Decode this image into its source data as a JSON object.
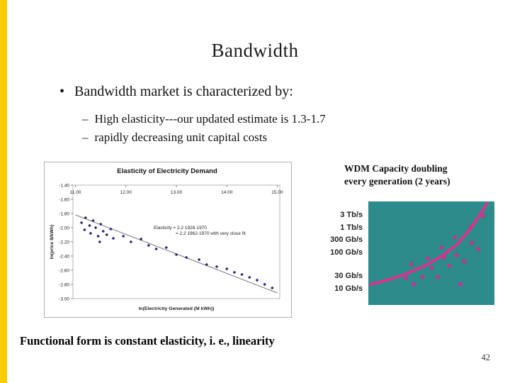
{
  "slide": {
    "title": "Bandwidth",
    "bullet_char": "•",
    "bullet": "Bandwidth market is characterized by:",
    "dash_char": "–",
    "sub_bullets": [
      "High elasticity---our updated estimate is 1.3-1.7",
      "rapidly decreasing unit capital costs"
    ],
    "footer": "Functional form is constant elasticity, i. e., linearity",
    "page_number": "42"
  },
  "wdm": {
    "heading": "WDM Capacity doubling every generation (2 years)",
    "rate_labels": [
      "3 Tb/s",
      "1 Tb/s",
      "300 Gb/s",
      "100 Gb/s",
      "30 Gb/s",
      "10 Gb/s"
    ]
  },
  "colors": {
    "accent_bar": "#ffcc00",
    "teal_bg": "#2e8b8b",
    "magenta": "#cc2f8f",
    "curve_pink": "#d6348f",
    "navy_point": "#2a2a7a",
    "trend_gray": "#777777"
  },
  "chart_data": [
    {
      "type": "scatter",
      "title": "Elasticity of Electricity Demand",
      "xlabel": "ln(Electricity Generated (M kWh))",
      "ylabel": "ln(price $/kWh)",
      "x_ticks": [
        11,
        12,
        13,
        14,
        15
      ],
      "x_tick_labels": [
        "11.00",
        "12.00",
        "13.00",
        "14.00",
        "15.00"
      ],
      "y_ticks": [
        -1.4,
        -1.6,
        -1.8,
        -2.0,
        -2.2,
        -2.4,
        -2.6,
        -2.8,
        -3.0
      ],
      "y_tick_labels": [
        "-1.40",
        "-1.60",
        "-1.80",
        "-2.00",
        "-2.20",
        "-2.40",
        "-2.60",
        "-2.80",
        "-3.00"
      ],
      "xlim": [
        10.95,
        15.05
      ],
      "ylim": [
        -3.0,
        -1.4
      ],
      "annotation_lines": [
        "Elasticity = 2.2 1928-1970",
        "= 2.2 1962-1970 with very close fit"
      ],
      "annotation_pos": [
        12.55,
        -2.02
      ],
      "trend_line": {
        "x": [
          11.0,
          15.0
        ],
        "y": [
          -1.82,
          -2.92
        ]
      },
      "points": [
        [
          11.12,
          -1.93
        ],
        [
          11.2,
          -1.86
        ],
        [
          11.28,
          -1.97
        ],
        [
          11.18,
          -2.03
        ],
        [
          11.35,
          -1.9
        ],
        [
          11.4,
          -2.0
        ],
        [
          11.3,
          -2.08
        ],
        [
          11.45,
          -2.12
        ],
        [
          11.5,
          -1.95
        ],
        [
          11.55,
          -2.05
        ],
        [
          11.62,
          -2.1
        ],
        [
          11.48,
          -2.2
        ],
        [
          11.7,
          -2.02
        ],
        [
          11.75,
          -2.15
        ],
        [
          11.95,
          -2.12
        ],
        [
          12.1,
          -2.2
        ],
        [
          12.3,
          -2.16
        ],
        [
          12.45,
          -2.25
        ],
        [
          12.6,
          -2.3
        ],
        [
          12.8,
          -2.28
        ],
        [
          13.0,
          -2.38
        ],
        [
          13.2,
          -2.42
        ],
        [
          13.45,
          -2.45
        ],
        [
          13.6,
          -2.52
        ],
        [
          13.8,
          -2.55
        ],
        [
          14.0,
          -2.58
        ],
        [
          14.15,
          -2.63
        ],
        [
          14.3,
          -2.66
        ],
        [
          14.45,
          -2.7
        ],
        [
          14.6,
          -2.74
        ],
        [
          14.75,
          -2.8
        ],
        [
          14.9,
          -2.85
        ]
      ]
    },
    {
      "type": "scatter",
      "title": "WDM capacity growth",
      "note": "capacity levels labeled outside chart: 10 Gb/s to 3 Tb/s",
      "coords": "relative 0-1, y measured from bottom",
      "squares": [
        [
          0.3,
          0.26
        ],
        [
          0.36,
          0.2
        ],
        [
          0.43,
          0.27
        ],
        [
          0.5,
          0.36
        ],
        [
          0.55,
          0.27
        ],
        [
          0.6,
          0.46
        ],
        [
          0.64,
          0.38
        ],
        [
          0.7,
          0.48
        ],
        [
          0.76,
          0.42
        ],
        [
          0.82,
          0.6
        ],
        [
          0.87,
          0.54
        ],
        [
          0.73,
          0.2
        ],
        [
          0.91,
          0.86
        ]
      ],
      "triangles": [
        [
          0.34,
          0.4
        ],
        [
          0.47,
          0.46
        ],
        [
          0.58,
          0.56
        ],
        [
          0.69,
          0.66
        ],
        [
          0.81,
          0.76
        ]
      ],
      "curve": [
        [
          0.02,
          0.2
        ],
        [
          0.15,
          0.24
        ],
        [
          0.3,
          0.3
        ],
        [
          0.45,
          0.38
        ],
        [
          0.58,
          0.47
        ],
        [
          0.7,
          0.58
        ],
        [
          0.8,
          0.72
        ],
        [
          0.88,
          0.86
        ],
        [
          0.94,
          0.98
        ]
      ]
    }
  ]
}
